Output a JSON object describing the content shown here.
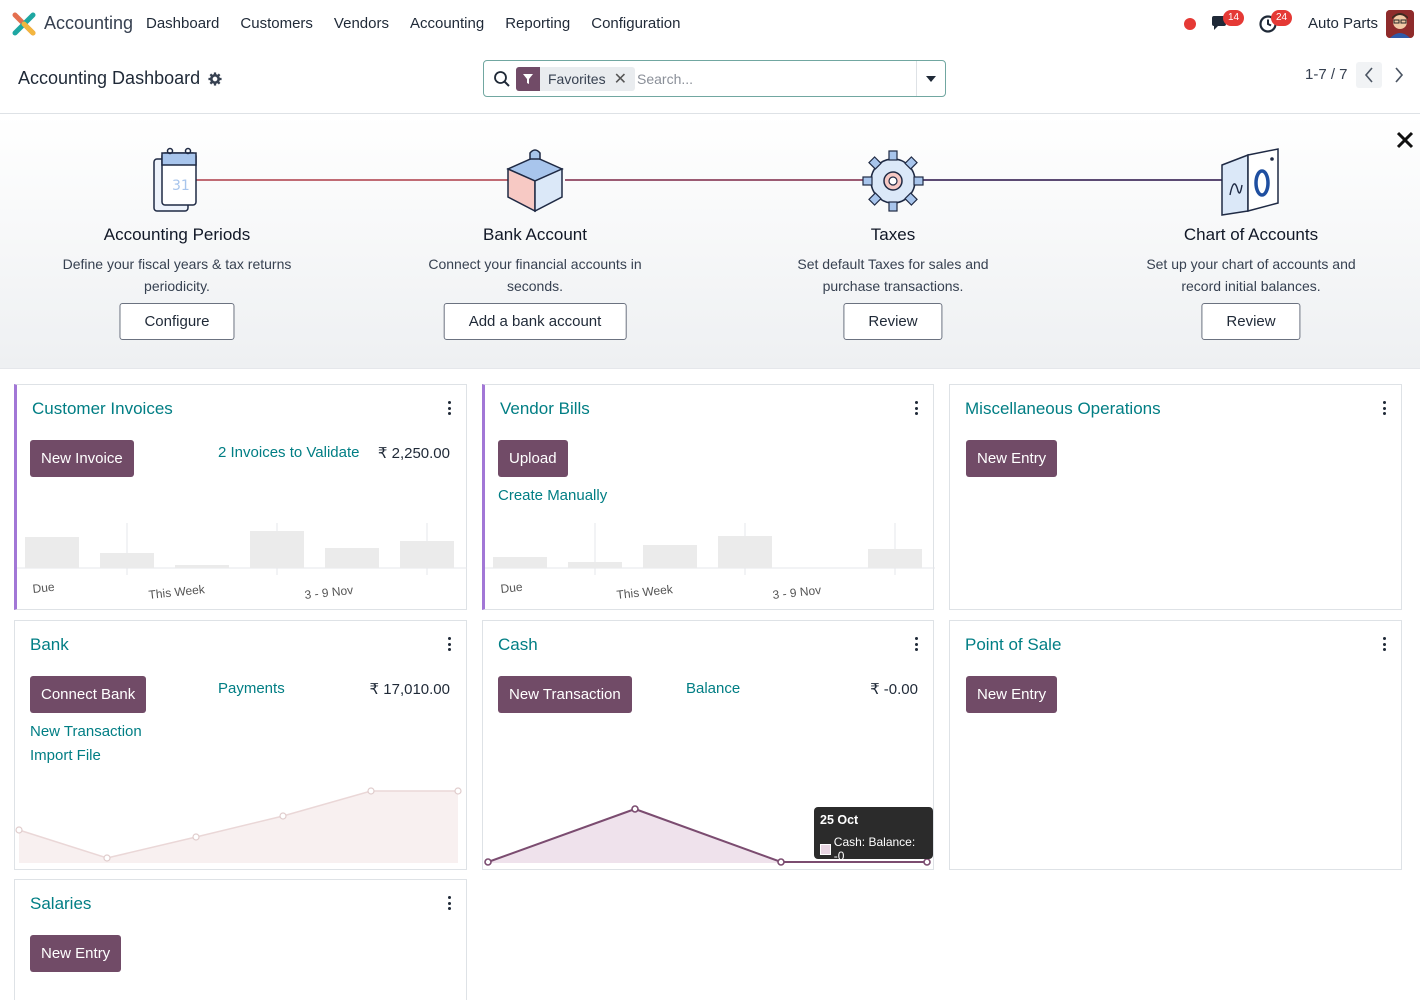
{
  "topbar": {
    "app_name": "Accounting",
    "menu": [
      "Dashboard",
      "Customers",
      "Vendors",
      "Accounting",
      "Reporting",
      "Configuration"
    ],
    "chat_badge": "14",
    "activity_badge": "24",
    "company": "Auto Parts"
  },
  "control": {
    "title": "Accounting Dashboard",
    "facet_label": "Favorites",
    "search_placeholder": "Search...",
    "pager": "1-7 / 7"
  },
  "onboarding": {
    "steps": [
      {
        "title": "Accounting Periods",
        "desc": "Define your fiscal years & tax returns periodicity.",
        "button": "Configure"
      },
      {
        "title": "Bank Account",
        "desc": "Connect your financial accounts in seconds.",
        "button": "Add a bank account"
      },
      {
        "title": "Taxes",
        "desc": "Set default Taxes for sales and purchase transactions.",
        "button": "Review"
      },
      {
        "title": "Chart of Accounts",
        "desc": "Set up your chart of accounts and record initial balances.",
        "button": "Review"
      }
    ]
  },
  "cards": {
    "customer_invoices": {
      "title": "Customer Invoices",
      "button": "New Invoice",
      "link": "2 Invoices to Validate",
      "amount": "₹ 2,250.00",
      "chart_labels": [
        "Due",
        "This Week",
        "3 - 9 Nov"
      ]
    },
    "vendor_bills": {
      "title": "Vendor Bills",
      "button": "Upload",
      "link": "Create Manually",
      "chart_labels": [
        "Due",
        "This Week",
        "3 - 9 Nov"
      ]
    },
    "misc": {
      "title": "Miscellaneous Operations",
      "button": "New Entry"
    },
    "bank": {
      "title": "Bank",
      "button": "Connect Bank",
      "link": "Payments",
      "amount": "₹ 17,010.00",
      "link2": "New Transaction",
      "link3": "Import File"
    },
    "cash": {
      "title": "Cash",
      "button": "New Transaction",
      "link": "Balance",
      "amount": "₹ -0.00",
      "tooltip_date": "25 Oct",
      "tooltip_value": "Cash: Balance: -0"
    },
    "pos": {
      "title": "Point of Sale",
      "button": "New Entry"
    },
    "salaries": {
      "title": "Salaries",
      "button": "New Entry"
    }
  }
}
